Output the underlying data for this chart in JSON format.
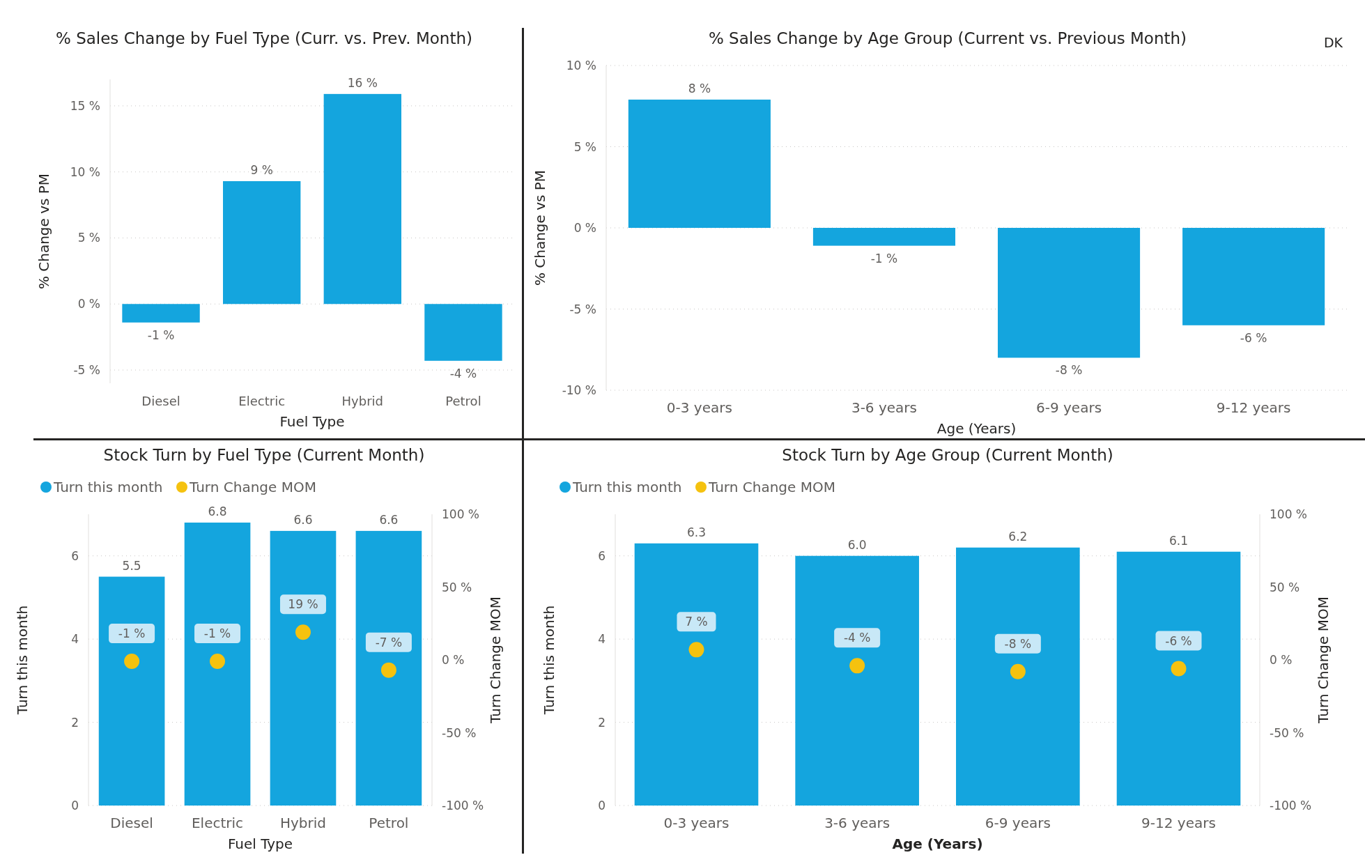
{
  "chart_data": [
    {
      "type": "bar",
      "title": "% Sales Change by Fuel Type (Curr. vs. Prev. Month)",
      "xlabel": "Fuel Type",
      "ylabel": "% Change vs PM",
      "categories": [
        "Diesel",
        "Electric",
        "Hybrid",
        "Petrol"
      ],
      "values": [
        -1.4,
        9.3,
        15.9,
        -4.3
      ],
      "value_labels": [
        "-1 %",
        "9 %",
        "16 %",
        "-4 %"
      ],
      "color": "#14a5de",
      "ylim": [
        -6,
        17
      ],
      "yticks": [
        {
          "value": -5,
          "label": "-5 %"
        },
        {
          "value": 0,
          "label": "0 %"
        },
        {
          "value": 5,
          "label": "5 %"
        },
        {
          "value": 10,
          "label": "10 %"
        },
        {
          "value": 15,
          "label": "15 %"
        }
      ],
      "grid": "y"
    },
    {
      "type": "bar",
      "title": "% Sales Change by Age Group (Current vs. Previous Month)",
      "xlabel": "Age (Years)",
      "ylabel": "% Change vs PM",
      "categories": [
        "0-3 years",
        "3-6 years",
        "6-9 years",
        "9-12 years"
      ],
      "values": [
        7.9,
        -1.1,
        -8.0,
        -6.0
      ],
      "value_labels": [
        "8 %",
        "-1 %",
        "-8 %",
        "-6 %"
      ],
      "color": "#14a5de",
      "ylim": [
        -10,
        10
      ],
      "yticks": [
        {
          "value": -10,
          "label": "-10 %"
        },
        {
          "value": -5,
          "label": "-5 %"
        },
        {
          "value": 0,
          "label": "0 %"
        },
        {
          "value": 5,
          "label": "5 %"
        },
        {
          "value": 10,
          "label": "10 %"
        }
      ],
      "grid": "y",
      "annotations": [
        "DK"
      ]
    },
    {
      "type": "bar",
      "title": "Stock Turn by Fuel Type (Current Month)",
      "xlabel": "Fuel Type",
      "ylabel": "Turn this month",
      "y2label": "Turn Change MOM",
      "categories": [
        "Diesel",
        "Electric",
        "Hybrid",
        "Petrol"
      ],
      "series": [
        {
          "name": "Turn this month",
          "color": "#14a5de",
          "values": [
            5.5,
            6.8,
            6.6,
            6.6
          ],
          "value_labels": [
            "5.5",
            "6.8",
            "6.6",
            "6.6"
          ]
        },
        {
          "name": "Turn Change MOM",
          "type": "scatter",
          "axis": "y2",
          "color": "#f5c20f",
          "values": [
            -1,
            -1,
            19,
            -7
          ],
          "value_labels": [
            "-1 %",
            "-1 %",
            "19 %",
            "-7 %"
          ]
        }
      ],
      "ylim": [
        0,
        7
      ],
      "yticks": [
        0,
        2,
        4,
        6
      ],
      "y2lim": [
        -100,
        100
      ],
      "y2ticks": [
        {
          "value": -100,
          "label": "-100 %"
        },
        {
          "value": -50,
          "label": "-50 %"
        },
        {
          "value": 0,
          "label": "0 %"
        },
        {
          "value": 50,
          "label": "50 %"
        },
        {
          "value": 100,
          "label": "100 %"
        }
      ],
      "grid": "y",
      "legend": "top left",
      "marker": "circle"
    },
    {
      "type": "bar",
      "title": "Stock Turn by Age Group (Current Month)",
      "xlabel": "Age (Years)",
      "ylabel": "Turn this month",
      "y2label": "Turn Change MOM",
      "categories": [
        "0-3 years",
        "3-6 years",
        "6-9 years",
        "9-12 years"
      ],
      "series": [
        {
          "name": "Turn this month",
          "color": "#14a5de",
          "values": [
            6.3,
            6.0,
            6.2,
            6.1
          ],
          "value_labels": [
            "6.3",
            "6.0",
            "6.2",
            "6.1"
          ]
        },
        {
          "name": "Turn Change MOM",
          "type": "scatter",
          "axis": "y2",
          "color": "#f5c20f",
          "values": [
            7,
            -4,
            -8,
            -6
          ],
          "value_labels": [
            "7 %",
            "-4 %",
            "-8 %",
            "-6 %"
          ]
        }
      ],
      "ylim": [
        0,
        7
      ],
      "yticks": [
        0,
        2,
        4,
        6
      ],
      "y2lim": [
        -100,
        100
      ],
      "y2ticks": [
        {
          "value": -100,
          "label": "-100 %"
        },
        {
          "value": -50,
          "label": "-50 %"
        },
        {
          "value": 0,
          "label": "0 %"
        },
        {
          "value": 50,
          "label": "50 %"
        },
        {
          "value": 100,
          "label": "100 %"
        }
      ],
      "grid": "y",
      "legend": "top left",
      "marker": "circle"
    }
  ]
}
